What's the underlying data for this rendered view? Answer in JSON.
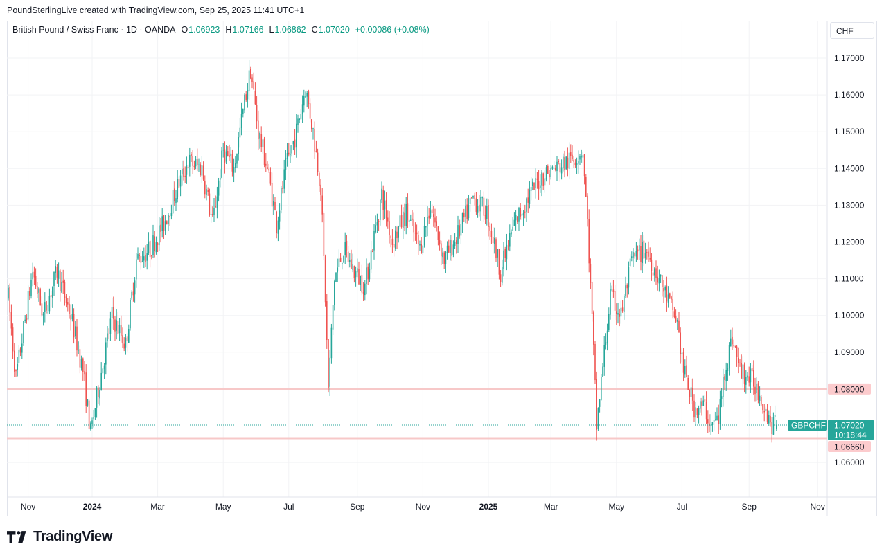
{
  "credit": "PoundSterlingLive created with TradingView.com, Sep 25, 2025 11:41 UTC+1",
  "legend": {
    "symbol_desc": "British Pound / Swiss Franc · 1D · OANDA",
    "o_label": "O",
    "o": "1.06923",
    "h_label": "H",
    "h": "1.07166",
    "l_label": "L",
    "l": "1.06862",
    "c_label": "C",
    "c": "1.07020",
    "change": "+0.00086 (+0.08%)"
  },
  "currency_button": "CHF",
  "logo_text": "TradingView",
  "colors": {
    "up": "#26a69a",
    "down": "#ef5350",
    "level": "#f7c8c8",
    "level_label": "#fccbcd",
    "badge": "#26a69a"
  },
  "chart_data": {
    "type": "candlestick",
    "symbol": "GBPCHF",
    "interval": "1D",
    "ylim": [
      1.051,
      1.176
    ],
    "y_ticks": [
      "1.17000",
      "1.16000",
      "1.15000",
      "1.14000",
      "1.13000",
      "1.12000",
      "1.11000",
      "1.10000",
      "1.09000",
      "1.08000",
      "1.06000"
    ],
    "x_ticks": [
      {
        "label": "Nov",
        "day": 13,
        "bold": false
      },
      {
        "label": "2024",
        "day": 55,
        "bold": true
      },
      {
        "label": "Mar",
        "day": 98,
        "bold": false
      },
      {
        "label": "May",
        "day": 141,
        "bold": false
      },
      {
        "label": "Jul",
        "day": 184,
        "bold": false
      },
      {
        "label": "Sep",
        "day": 229,
        "bold": false
      },
      {
        "label": "Nov",
        "day": 272,
        "bold": false
      },
      {
        "label": "2025",
        "day": 315,
        "bold": true
      },
      {
        "label": "Mar",
        "day": 356,
        "bold": false
      },
      {
        "label": "May",
        "day": 399,
        "bold": false
      },
      {
        "label": "Jul",
        "day": 442,
        "bold": false
      },
      {
        "label": "Sep",
        "day": 486,
        "bold": false
      },
      {
        "label": "Nov",
        "day": 531,
        "bold": false
      }
    ],
    "close_path_day_price": [
      [
        0,
        1.105
      ],
      [
        5,
        1.083
      ],
      [
        16,
        1.112
      ],
      [
        23,
        1.1
      ],
      [
        32,
        1.112
      ],
      [
        41,
        1.1
      ],
      [
        49,
        1.085
      ],
      [
        54,
        1.068
      ],
      [
        59,
        1.08
      ],
      [
        68,
        1.1
      ],
      [
        77,
        1.092
      ],
      [
        84,
        1.115
      ],
      [
        93,
        1.118
      ],
      [
        102,
        1.125
      ],
      [
        111,
        1.135
      ],
      [
        118,
        1.142
      ],
      [
        127,
        1.14
      ],
      [
        134,
        1.125
      ],
      [
        141,
        1.145
      ],
      [
        148,
        1.14
      ],
      [
        155,
        1.158
      ],
      [
        159,
        1.167
      ],
      [
        164,
        1.15
      ],
      [
        170,
        1.14
      ],
      [
        176,
        1.125
      ],
      [
        182,
        1.14
      ],
      [
        189,
        1.15
      ],
      [
        195,
        1.162
      ],
      [
        200,
        1.15
      ],
      [
        205,
        1.135
      ],
      [
        208,
        1.105
      ],
      [
        210,
        1.08
      ],
      [
        214,
        1.11
      ],
      [
        220,
        1.118
      ],
      [
        227,
        1.112
      ],
      [
        234,
        1.108
      ],
      [
        245,
        1.133
      ],
      [
        252,
        1.12
      ],
      [
        261,
        1.128
      ],
      [
        270,
        1.118
      ],
      [
        277,
        1.13
      ],
      [
        286,
        1.115
      ],
      [
        295,
        1.122
      ],
      [
        305,
        1.132
      ],
      [
        314,
        1.128
      ],
      [
        323,
        1.112
      ],
      [
        332,
        1.125
      ],
      [
        341,
        1.132
      ],
      [
        350,
        1.138
      ],
      [
        359,
        1.14
      ],
      [
        368,
        1.142
      ],
      [
        377,
        1.145
      ],
      [
        380,
        1.125
      ],
      [
        384,
        1.09
      ],
      [
        386,
        1.07
      ],
      [
        391,
        1.09
      ],
      [
        395,
        1.105
      ],
      [
        402,
        1.1
      ],
      [
        409,
        1.115
      ],
      [
        418,
        1.118
      ],
      [
        425,
        1.112
      ],
      [
        432,
        1.105
      ],
      [
        439,
        1.098
      ],
      [
        443,
        1.085
      ],
      [
        450,
        1.075
      ],
      [
        457,
        1.075
      ],
      [
        461,
        1.07
      ],
      [
        466,
        1.072
      ],
      [
        470,
        1.085
      ],
      [
        475,
        1.094
      ],
      [
        480,
        1.085
      ],
      [
        489,
        1.082
      ],
      [
        495,
        1.077
      ],
      [
        501,
        1.07
      ],
      [
        504,
        1.0702
      ]
    ],
    "last": {
      "open": 1.06923,
      "high": 1.07166,
      "low": 1.06862,
      "close": 1.0702,
      "label": "1.07020",
      "countdown": "10:18:44"
    },
    "levels": [
      {
        "price": 1.08,
        "label": "1.08000"
      },
      {
        "price": 1.0666,
        "label": "1.06660"
      }
    ]
  }
}
